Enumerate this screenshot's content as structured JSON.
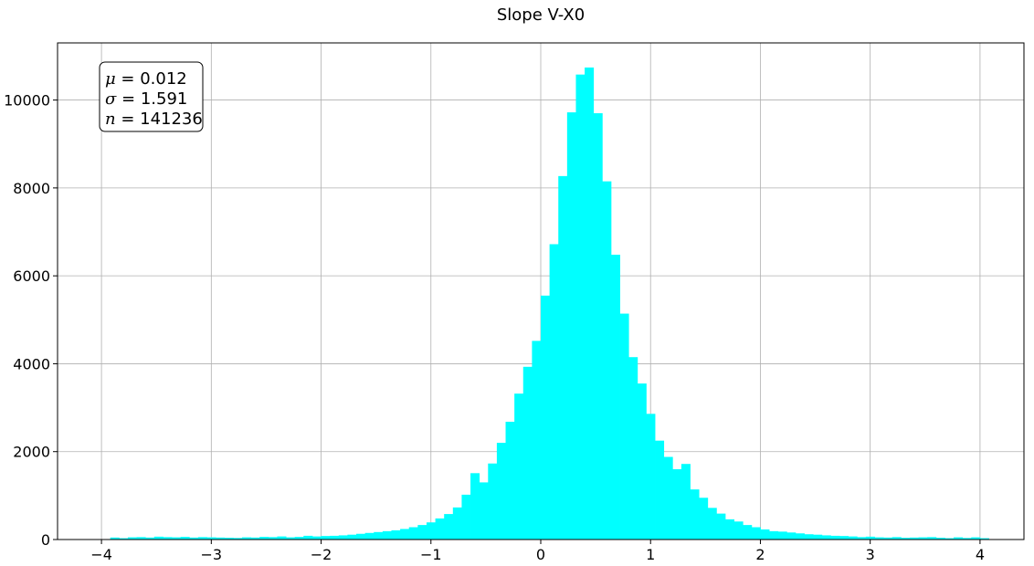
{
  "chart_data": {
    "type": "bar",
    "title": "Slope V-X0",
    "xlabel": "",
    "ylabel": "",
    "xlim": [
      -4.4,
      4.4
    ],
    "ylim": [
      0,
      11300
    ],
    "grid": true,
    "bar_color": "#00ffff",
    "bin_range": [
      -4,
      4
    ],
    "bin_width": 0.08,
    "x_ticks": [
      -4,
      -3,
      -2,
      -1,
      0,
      1,
      2,
      3,
      4
    ],
    "x_tick_labels": [
      "−4",
      "−3",
      "−2",
      "−1",
      "0",
      "1",
      "2",
      "3",
      "4"
    ],
    "y_ticks": [
      0,
      2000,
      4000,
      6000,
      8000,
      10000
    ],
    "y_tick_labels": [
      "0",
      "2000",
      "4000",
      "6000",
      "8000",
      "10000"
    ],
    "values": [
      0,
      45,
      30,
      50,
      55,
      45,
      65,
      55,
      50,
      60,
      45,
      55,
      50,
      45,
      40,
      35,
      50,
      45,
      60,
      55,
      70,
      50,
      60,
      85,
      70,
      80,
      85,
      95,
      110,
      130,
      150,
      170,
      190,
      210,
      240,
      280,
      330,
      390,
      480,
      580,
      730,
      1020,
      1510,
      1300,
      1730,
      2200,
      2680,
      3320,
      3930,
      4520,
      5550,
      6720,
      8270,
      9720,
      10580,
      10740,
      9700,
      8150,
      6480,
      5140,
      4150,
      3550,
      2860,
      2250,
      1880,
      1600,
      1720,
      1140,
      950,
      720,
      590,
      460,
      410,
      330,
      280,
      230,
      190,
      180,
      160,
      140,
      120,
      110,
      95,
      85,
      80,
      70,
      55,
      65,
      50,
      45,
      55,
      40,
      45,
      50,
      55,
      40,
      30,
      50,
      35,
      50,
      30
    ],
    "annotation": {
      "lines": [
        {
          "symbol": "μ",
          "text": " = 0.012"
        },
        {
          "symbol": "σ",
          "text": " = 1.591"
        },
        {
          "symbol": "n",
          "text": " = 141236"
        }
      ],
      "placement": "top-left"
    }
  }
}
